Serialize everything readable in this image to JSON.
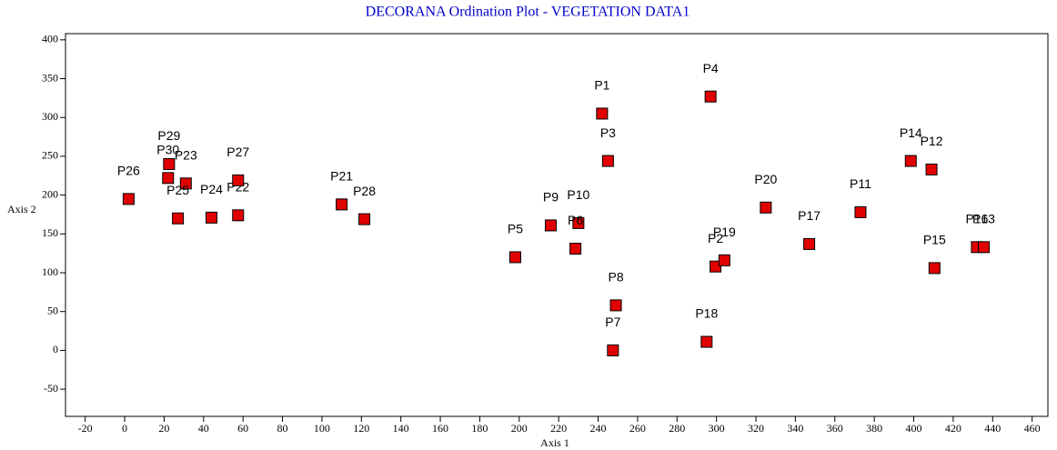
{
  "chart_data": {
    "type": "scatter",
    "title": "DECORANA Ordination Plot - VEGETATION DATA1",
    "xlabel": "Axis 1",
    "ylabel": "Axis 2",
    "series": [
      {
        "name": "Plots",
        "color": "#e00000",
        "labels": [
          "P26",
          "P30",
          "P29",
          "P23",
          "P25",
          "P24",
          "P22",
          "P27",
          "P21",
          "P28",
          "P5",
          "P9",
          "P10",
          "P6",
          "P1",
          "P3",
          "P4",
          "P8",
          "P7",
          "P18",
          "P2",
          "P19",
          "P20",
          "P17",
          "P11",
          "P14",
          "P12",
          "P15",
          "P16",
          "P13"
        ],
        "x": [
          2,
          22,
          22.5,
          31,
          27,
          44,
          57.5,
          57.5,
          110,
          121.5,
          198,
          216,
          230,
          228.5,
          242,
          245,
          297,
          249,
          247.5,
          295,
          299.5,
          304,
          325,
          347,
          373,
          398.5,
          409,
          410.5,
          432,
          435.5
        ],
        "values": [
          195,
          222,
          240,
          215,
          170,
          171,
          174,
          219,
          188,
          169,
          120,
          161,
          164,
          131,
          305,
          244,
          327,
          58,
          0,
          11,
          108,
          116,
          184,
          137,
          178,
          244,
          233,
          106,
          133,
          133
        ]
      }
    ],
    "xlim": [
      -30,
      468
    ],
    "ylim": [
      -85,
      408
    ],
    "xticks": [
      -20,
      0,
      20,
      40,
      60,
      80,
      100,
      120,
      140,
      160,
      180,
      200,
      220,
      240,
      260,
      280,
      300,
      320,
      340,
      360,
      380,
      400,
      420,
      440,
      460
    ],
    "yticks": [
      -50,
      0,
      50,
      100,
      150,
      200,
      250,
      300,
      350,
      400
    ]
  }
}
